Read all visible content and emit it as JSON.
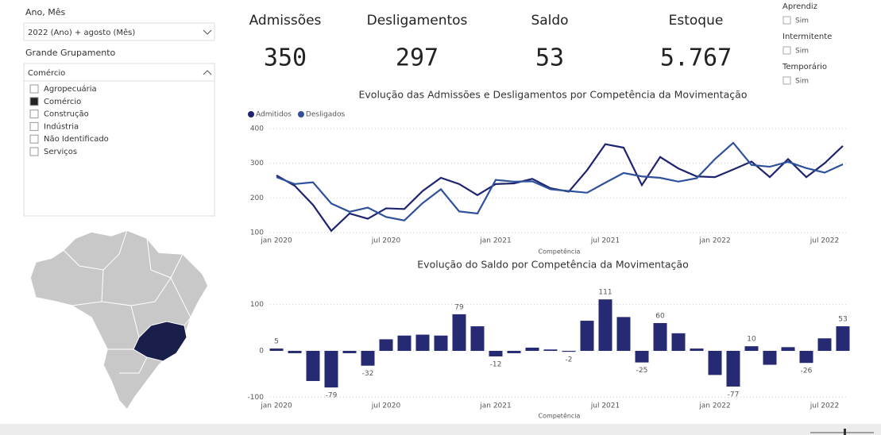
{
  "filters": {
    "period": {
      "label": "Ano, Mês",
      "selected": "2022 (Ano) + agosto (Mês)"
    },
    "group": {
      "label": "Grande Grupamento",
      "selected": "Comércio",
      "options": [
        "Agropecuária",
        "Comércio",
        "Construção",
        "Indústria",
        "Não Identificado",
        "Serviços"
      ]
    }
  },
  "kpis": [
    {
      "label": "Admissões",
      "value": "350"
    },
    {
      "label": "Desligamentos",
      "value": "297"
    },
    {
      "label": "Saldo",
      "value": "53"
    },
    {
      "label": "Estoque",
      "value": "5.767"
    }
  ],
  "toggles": [
    {
      "label": "Aprendiz",
      "option": "Sim"
    },
    {
      "label": "Intermitente",
      "option": "Sim"
    },
    {
      "label": "Temporário",
      "option": "Sim"
    }
  ],
  "chart_data": [
    {
      "type": "line",
      "title": "Evolução das Admissões e Desligamentos por Competência da Movimentação",
      "x_label": "Competência",
      "categories": [
        "jan 2020",
        null,
        null,
        null,
        null,
        null,
        "jul 2020",
        null,
        null,
        null,
        null,
        null,
        "jan 2021",
        null,
        null,
        null,
        null,
        null,
        "jul 2021",
        null,
        null,
        null,
        null,
        null,
        "jan 2022",
        null,
        null,
        null,
        null,
        null,
        "jul 2022",
        null
      ],
      "series": [
        {
          "name": "Admitidos",
          "color": "#1f2470",
          "values": [
            265,
            235,
            180,
            105,
            155,
            140,
            170,
            168,
            220,
            258,
            240,
            208,
            240,
            242,
            255,
            228,
            218,
            280,
            355,
            345,
            237,
            318,
            285,
            262,
            260,
            282,
            305,
            260,
            312,
            260,
            300,
            350
          ]
        },
        {
          "name": "Desligados",
          "color": "#2f519c",
          "values": [
            260,
            240,
            245,
            184,
            160,
            172,
            145,
            135,
            185,
            225,
            161,
            155,
            252,
            247,
            248,
            225,
            220,
            215,
            244,
            272,
            262,
            258,
            247,
            257,
            312,
            359,
            295,
            290,
            304,
            286,
            273,
            297
          ]
        }
      ],
      "ylim": [
        100,
        400
      ],
      "yticks": [
        100,
        200,
        300,
        400
      ],
      "grid": true,
      "legend": "top-left"
    },
    {
      "type": "bar",
      "title": "Evolução do Saldo por Competência da Movimentação",
      "x_label": "Competência",
      "categories": [
        "jan 2020",
        null,
        null,
        null,
        null,
        null,
        "jul 2020",
        null,
        null,
        null,
        null,
        null,
        "jan 2021",
        null,
        null,
        null,
        null,
        null,
        "jul 2021",
        null,
        null,
        null,
        null,
        null,
        "jan 2022",
        null,
        null,
        null,
        null,
        null,
        "jul 2022",
        null
      ],
      "values": [
        5,
        -5,
        -65,
        -79,
        -5,
        -32,
        25,
        33,
        35,
        33,
        79,
        53,
        -12,
        -5,
        7,
        3,
        -2,
        65,
        111,
        73,
        -25,
        60,
        38,
        5,
        -52,
        -77,
        10,
        -30,
        8,
        -26,
        27,
        53
      ],
      "value_labels": [
        "5",
        null,
        null,
        "-79",
        null,
        "-32",
        null,
        null,
        null,
        null,
        "79",
        null,
        "-12",
        null,
        null,
        null,
        "-2",
        null,
        "111",
        null,
        "-25",
        "60",
        null,
        null,
        null,
        "-77",
        "10",
        null,
        null,
        "-26",
        null,
        "53"
      ],
      "color": "#252a72",
      "ylim": [
        -100,
        130
      ],
      "yticks": [
        -100,
        0,
        100
      ],
      "grid": true
    }
  ]
}
